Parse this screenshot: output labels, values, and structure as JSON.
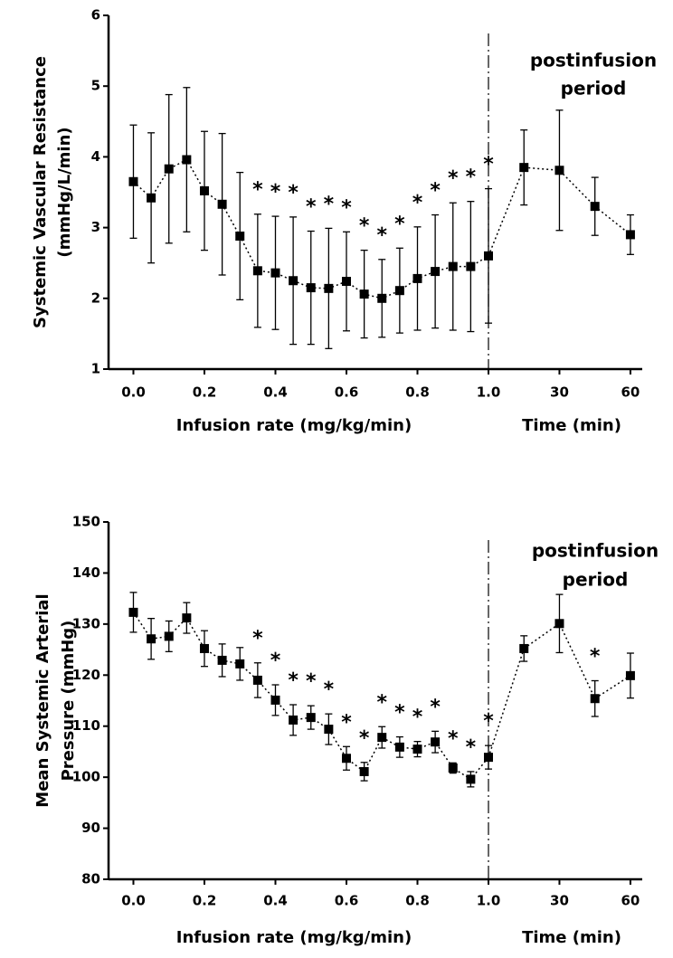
{
  "chart_data": [
    {
      "type": "line",
      "y_label": [
        "Systemic Vascular Resistance",
        "(mmHg/L/min)"
      ],
      "x_label": "Infusion rate (mg/kg/min)",
      "x2_label": "Time (min)",
      "annotation": [
        "postinfusion",
        "period"
      ],
      "xlim": [
        -0.07,
        1.0
      ],
      "xticks": [
        {
          "value": 0,
          "label": "0.0"
        },
        0.2,
        0.4,
        0.6,
        0.8,
        {
          "value": 1,
          "label": "1.0"
        }
      ],
      "x2lim": [
        0,
        65
      ],
      "x2ticks": [
        30,
        60
      ],
      "ylim": [
        1,
        6
      ],
      "yticks": [
        1,
        2,
        3,
        4,
        5,
        6
      ],
      "series": [
        {
          "color": "#000000",
          "x": [
            0,
            0.05,
            0.1,
            0.15,
            0.2,
            0.25,
            0.3,
            0.35,
            0.4,
            0.45,
            0.5,
            0.55,
            0.6,
            0.65,
            0.7,
            0.75,
            0.8,
            0.85,
            0.9,
            0.95,
            1.0
          ],
          "values": [
            3.65,
            3.42,
            3.83,
            3.96,
            3.52,
            3.33,
            2.88,
            2.39,
            2.36,
            2.25,
            2.15,
            2.14,
            2.24,
            2.06,
            2.0,
            2.11,
            2.28,
            2.38,
            2.45,
            2.45,
            2.6
          ],
          "errors": [
            0.8,
            0.92,
            1.05,
            1.02,
            0.84,
            1.0,
            0.9,
            0.8,
            0.8,
            0.9,
            0.8,
            0.85,
            0.7,
            0.62,
            0.55,
            0.6,
            0.73,
            0.8,
            0.9,
            0.92,
            0.95
          ],
          "markers": [
            null,
            null,
            null,
            null,
            null,
            null,
            null,
            "*",
            "*",
            "*",
            "*",
            "*",
            "*",
            "*",
            "*",
            "*",
            "*",
            "*",
            "*",
            "*",
            "*"
          ]
        },
        {
          "color": "#000000",
          "axis": "x2",
          "x": [
            15,
            30,
            45,
            60
          ],
          "values": [
            3.85,
            3.81,
            3.3,
            2.9
          ],
          "errors": [
            0.53,
            0.85,
            0.41,
            0.28
          ],
          "markers": [
            null,
            null,
            null,
            null
          ]
        }
      ]
    },
    {
      "type": "line",
      "y_label": [
        "Mean Systemic Arterial",
        "Pressure (mmHg)"
      ],
      "x_label": "Infusion rate (mg/kg/min)",
      "x2_label": "Time (min)",
      "annotation": [
        "postinfusion",
        "period"
      ],
      "xlim": [
        -0.07,
        1.0
      ],
      "xticks": [
        {
          "value": 0,
          "label": "0.0"
        },
        0.2,
        0.4,
        0.6,
        0.8,
        {
          "value": 1,
          "label": "1.0"
        }
      ],
      "x2lim": [
        0,
        65
      ],
      "x2ticks": [
        30,
        60
      ],
      "ylim": [
        80,
        150
      ],
      "yticks": [
        80,
        90,
        100,
        110,
        120,
        130,
        140,
        150
      ],
      "series": [
        {
          "color": "#000000",
          "x": [
            0,
            0.05,
            0.1,
            0.15,
            0.2,
            0.25,
            0.3,
            0.35,
            0.4,
            0.45,
            0.5,
            0.55,
            0.6,
            0.65,
            0.7,
            0.75,
            0.8,
            0.85,
            0.9,
            0.95,
            1.0
          ],
          "values": [
            132.3,
            127.1,
            127.6,
            131.2,
            125.2,
            122.9,
            122.2,
            119,
            115.1,
            111.2,
            111.7,
            109.4,
            103.7,
            101.1,
            107.8,
            105.9,
            105.5,
            106.9,
            101.8,
            99.6,
            103.9
          ],
          "errors": [
            3.9,
            4,
            3,
            3,
            3.5,
            3.2,
            3.2,
            3.4,
            3,
            3,
            2.3,
            3,
            2.3,
            1.8,
            2.1,
            2,
            1.5,
            2.1,
            1,
            1.5,
            2.3
          ],
          "markers": [
            null,
            null,
            null,
            null,
            null,
            null,
            null,
            "*",
            "*",
            "*",
            "*",
            "*",
            "*",
            "*",
            "*",
            "*",
            "*",
            "*",
            "*",
            "*",
            "*"
          ]
        },
        {
          "color": "#000000",
          "axis": "x2",
          "x": [
            15,
            30,
            45,
            60
          ],
          "values": [
            125.2,
            130.1,
            115.4,
            119.9
          ],
          "errors": [
            2.5,
            5.7,
            3.5,
            4.4
          ],
          "markers": [
            null,
            null,
            "*",
            null
          ]
        }
      ]
    }
  ]
}
